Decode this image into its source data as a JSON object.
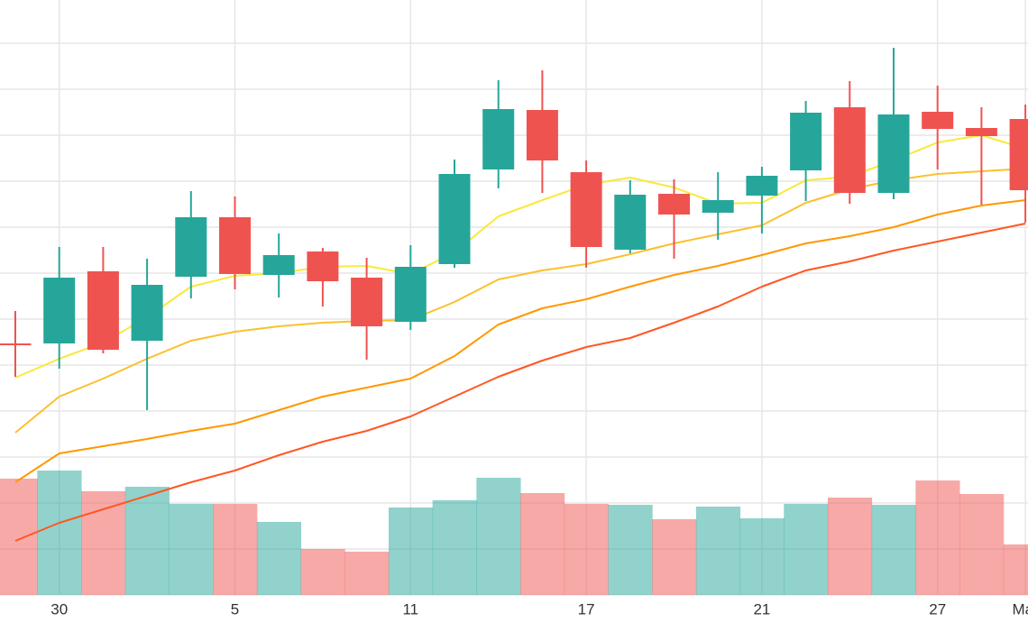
{
  "chart_data": {
    "type": "candlestick",
    "categories": [
      null,
      "30",
      null,
      null,
      null,
      "5",
      null,
      null,
      null,
      "11",
      null,
      null,
      null,
      "17",
      null,
      null,
      null,
      "21",
      null,
      null,
      null,
      "27",
      null,
      "Mar"
    ],
    "open": [
      278,
      279,
      359,
      282,
      353,
      419,
      355,
      381,
      352,
      303,
      367,
      472,
      538,
      469,
      383,
      445,
      424,
      443,
      471,
      541,
      446,
      536,
      518,
      528
    ],
    "high": [
      315,
      386,
      386,
      373,
      448,
      442,
      401,
      385,
      374,
      388,
      483,
      571,
      582,
      482,
      460,
      461,
      469,
      475,
      548,
      570,
      607,
      565,
      541,
      544
    ],
    "low": [
      242,
      251,
      268,
      205,
      329,
      339,
      330,
      320,
      261,
      294,
      363,
      451,
      446,
      363,
      379,
      373,
      394,
      401,
      437,
      434,
      439,
      472,
      433,
      413
    ],
    "close": [
      277,
      352,
      272,
      344,
      419,
      356,
      377,
      348,
      298,
      364,
      467,
      539,
      482,
      386,
      444,
      422,
      438,
      465,
      535,
      446,
      533,
      517,
      509,
      449
    ],
    "volume": [
      129,
      138,
      115,
      120,
      101,
      101,
      81,
      51,
      48,
      97,
      105,
      130,
      113,
      101,
      100,
      84,
      98,
      85,
      101,
      108,
      100,
      127,
      112,
      56
    ],
    "up_color": "#26a69a",
    "down_color": "#ef5350",
    "moving_averages": [
      {
        "color": "#f9e93c",
        "values": [
          241,
          262,
          280,
          308,
          342,
          354,
          357,
          364,
          365,
          356,
          380,
          420,
          438,
          455,
          463,
          452,
          434,
          435,
          460,
          464,
          482,
          502,
          510,
          495
        ]
      },
      {
        "color": "#fbc02d",
        "values": [
          180,
          220,
          240,
          262,
          282,
          292,
          298,
          302,
          304,
          305,
          325,
          350,
          360,
          367,
          378,
          390,
          400,
          410,
          435,
          450,
          460,
          467,
          470,
          473
        ]
      },
      {
        "color": "#ff9800",
        "values": [
          125,
          157,
          165,
          173,
          182,
          190,
          205,
          220,
          230,
          240,
          265,
          300,
          318,
          328,
          342,
          355,
          365,
          377,
          390,
          398,
          408,
          422,
          432,
          438
        ]
      },
      {
        "color": "#ff5722",
        "values": [
          60,
          80,
          95,
          110,
          125,
          138,
          155,
          170,
          182,
          198,
          220,
          242,
          260,
          275,
          285,
          302,
          320,
          342,
          360,
          370,
          382,
          392,
          402,
          412
        ]
      }
    ],
    "ylim": [
      0,
      660
    ],
    "yticks": [
      0,
      51,
      102,
      153,
      204,
      255,
      306,
      357,
      408,
      459,
      510,
      561,
      612
    ],
    "grid": true
  }
}
